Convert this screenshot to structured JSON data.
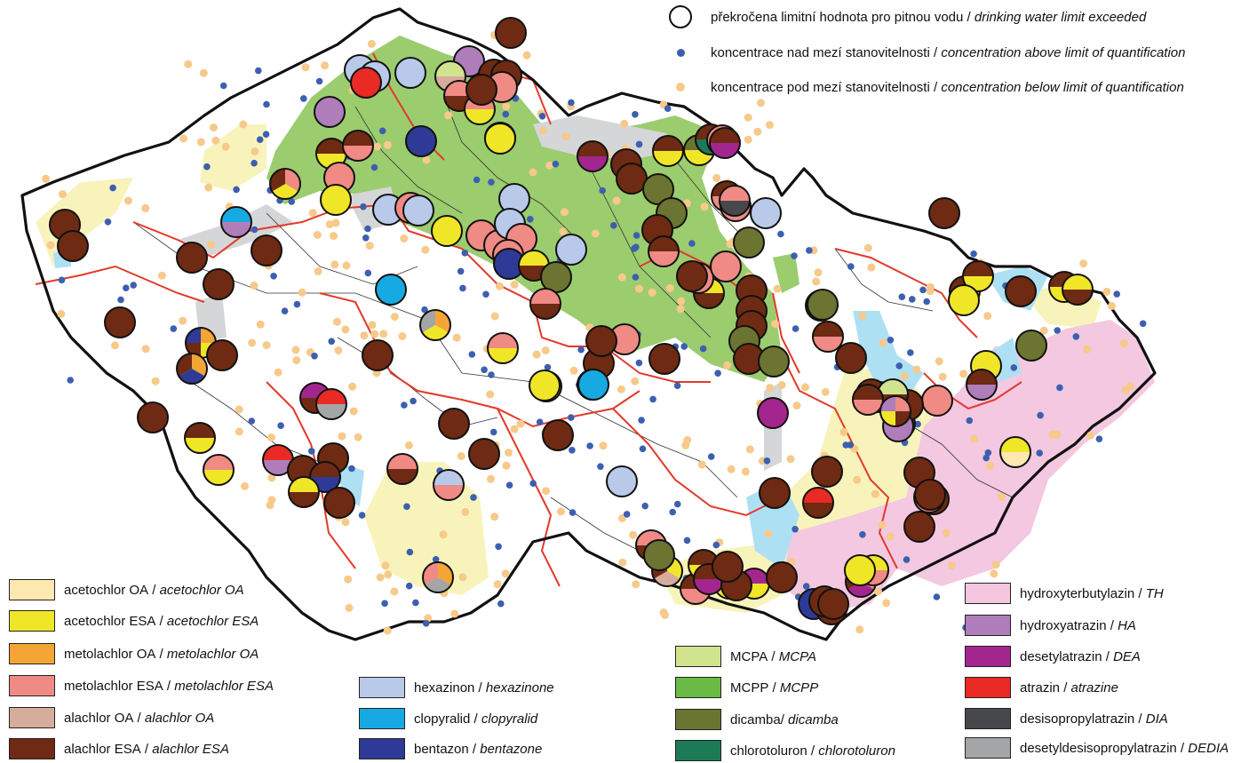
{
  "colors": {
    "background": "#ffffff",
    "border_country": "#111111",
    "border_region": "#e23a2a",
    "catchment_line": "#222222",
    "dot_above": "#3d5fb0",
    "dot_below": "#f7c98a",
    "area_green": "#9bcc6e",
    "area_yellow": "#f8f3bb",
    "area_pink": "#f3c8e0",
    "area_blue": "#aee0f4",
    "area_gray": "#d5d6d8"
  },
  "symbol_legend": [
    {
      "symbol": "big-circle-outline",
      "text": "překročena limitní hodnota pro pitnou vodu",
      "text_en": "drinking water limit exceeded"
    },
    {
      "symbol": "blue-dot",
      "text": "koncentrace nad mezí stanovitelnosti",
      "text_en": "concentration above limit of quantification"
    },
    {
      "symbol": "orange-dot",
      "text": "koncentrace pod mezí stanovitelnosti",
      "text_en": "concentration below limit of quantification"
    }
  ],
  "legend": {
    "col1": [
      {
        "cz": "acetochlor OA",
        "en": "acetochlor OA",
        "color": "#fde9b0"
      },
      {
        "cz": "acetochlor ESA",
        "en": "acetochlor ESA",
        "color": "#f0e628"
      },
      {
        "cz": "metolachlor OA",
        "en": "metolachlor OA",
        "color": "#f5a535"
      },
      {
        "cz": "metolachlor ESA",
        "en": "metolachlor ESA",
        "color": "#f08a84"
      },
      {
        "cz": "alachlor OA",
        "en": "alachlor OA",
        "color": "#d7ac9d"
      },
      {
        "cz": "alachlor ESA",
        "en": "alachlor ESA",
        "color": "#6e2a12"
      }
    ],
    "col2": [
      {
        "cz": "hexazinon",
        "en": "hexazinone",
        "color": "#b8c9ea"
      },
      {
        "cz": "clopyralid",
        "en": "clopyralid",
        "color": "#17a9e1"
      },
      {
        "cz": "bentazon",
        "en": "bentazone",
        "color": "#2e3a95"
      }
    ],
    "col3": [
      {
        "cz": "MCPA",
        "en": "MCPA",
        "color": "#d2e38f"
      },
      {
        "cz": "MCPP",
        "en": "MCPP",
        "color": "#6abb46"
      },
      {
        "cz": "dicamba",
        "en": "dicamba",
        "color": "#6b7430",
        "sep": "/ "
      },
      {
        "cz": "chlorotoluron",
        "en": "chlorotoluron",
        "color": "#1c7a57"
      }
    ],
    "col4": [
      {
        "cz": "hydroxyterbutylazin",
        "en": "TH",
        "color": "#f5c6df"
      },
      {
        "cz": "hydroxyatrazin",
        "en": "HA",
        "color": "#b07dbb"
      },
      {
        "cz": "desetylatrazin",
        "en": "DEA",
        "color": "#a3268e"
      },
      {
        "cz": "atrazin",
        "en": "atrazine",
        "color": "#ea2a25"
      },
      {
        "cz": "desisopropylatrazin",
        "en": "DIA",
        "color": "#46484b"
      },
      {
        "cz": "desetyldesisopropylatrazin",
        "en": "DEDIA",
        "color": "#a4a5a7"
      }
    ]
  },
  "samples": [
    {
      "pie": [
        "#6e2a12"
      ]
    },
    {
      "pie": [
        "#b8c9ea"
      ]
    },
    {
      "pie": [
        "#b8c9ea"
      ]
    },
    {
      "pie": [
        "#b07dbb"
      ]
    },
    {
      "pie": [
        "#6e2a12"
      ]
    },
    {
      "pie": [
        "#d2e38f",
        "#d7ac9d"
      ]
    },
    {
      "pie": [
        "#b8c9ea"
      ]
    },
    {
      "pie": [
        "#ea2a25"
      ]
    },
    {
      "pie": [
        "#b07dbb"
      ]
    },
    {
      "pie": [
        "#f08a84",
        "#6e2a12"
      ]
    },
    {
      "pie": [
        "#f08a84",
        "#f0e628"
      ]
    },
    {
      "pie": [
        "#6e2a12"
      ]
    },
    {
      "pie": [
        "#2e3a95"
      ]
    },
    {
      "pie": [
        "#f0e628"
      ]
    },
    {
      "pie": [
        "#6e2a12",
        "#f0e628"
      ]
    },
    {
      "pie": [
        "#6e2a12",
        "#f08a84"
      ]
    },
    {
      "pie": [
        "#f08a84",
        "#f0e628",
        "#6e2a12"
      ]
    },
    {
      "pie": [
        "#f08a84"
      ]
    },
    {
      "pie": [
        "#f0e628"
      ]
    },
    {
      "pie": [
        "#b8c9ea"
      ]
    },
    {
      "pie": [
        "#f08a84"
      ]
    },
    {
      "pie": [
        "#b8c9ea"
      ]
    },
    {
      "pie": [
        "#17a9e1",
        "#b07dbb"
      ]
    },
    {
      "pie": [
        "#6e2a12"
      ]
    },
    {
      "pie": [
        "#6e2a12"
      ]
    },
    {
      "pie": [
        "#6e2a12"
      ]
    },
    {
      "pie": [
        "#6e2a12"
      ]
    },
    {
      "pie": [
        "#6e2a12"
      ]
    },
    {
      "pie": [
        "#17a9e1"
      ]
    },
    {
      "pie": [
        "#f5a535",
        "#f0e628",
        "#6e2a12",
        "#2e3a95"
      ]
    },
    {
      "pie": [
        "#f5a535",
        "#2e3a95",
        "#6e2a12"
      ]
    },
    {
      "pie": [
        "#6e2a12"
      ]
    },
    {
      "pie": [
        "#a3268e",
        "#6e2a12"
      ]
    },
    {
      "pie": [
        "#ea2a25",
        "#a4a5a7"
      ]
    },
    {
      "pie": [
        "#6e2a12"
      ]
    },
    {
      "pie": [
        "#6e2a12",
        "#f0e628"
      ]
    },
    {
      "pie": [
        "#6e2a12"
      ]
    },
    {
      "pie": [
        "#f08a84",
        "#f0e628"
      ]
    },
    {
      "pie": [
        "#ea2a25",
        "#b07dbb"
      ]
    },
    {
      "pie": [
        "#6e2a12"
      ]
    },
    {
      "pie": [
        "#6e2a12"
      ]
    },
    {
      "pie": [
        "#6e2a12",
        "#2e3a95"
      ]
    },
    {
      "pie": [
        "#f0e628",
        "#6e2a12"
      ]
    },
    {
      "pie": [
        "#6e2a12"
      ]
    },
    {
      "pie": [
        "#f08a84",
        "#6e2a12"
      ]
    },
    {
      "pie": [
        "#b8c9ea",
        "#f08a84"
      ]
    },
    {
      "pie": [
        "#6e2a12"
      ]
    },
    {
      "pie": [
        "#6e2a12"
      ]
    },
    {
      "pie": [
        "#6e2a12"
      ]
    },
    {
      "pie": [
        "#6e2a12"
      ]
    },
    {
      "pie": [
        "#f5a535",
        "#a4a5a7",
        "#f08a84"
      ]
    },
    {
      "pie": [
        "#f5a535",
        "#f0e628",
        "#a4a5a7"
      ]
    },
    {
      "pie": [
        "#f08a84",
        "#f0e628"
      ]
    },
    {
      "pie": [
        "#f0e628"
      ]
    },
    {
      "pie": [
        "#17a9e1"
      ]
    },
    {
      "pie": [
        "#6e2a12"
      ]
    },
    {
      "pie": [
        "#6e2a12"
      ]
    },
    {
      "pie": [
        "#f08a84"
      ]
    },
    {
      "pie": [
        "#6e2a12"
      ]
    },
    {
      "pie": [
        "#b8c9ea"
      ]
    },
    {
      "pie": [
        "#f08a84"
      ]
    },
    {
      "pie": [
        "#f0e628"
      ]
    },
    {
      "pie": [
        "#f08a84"
      ]
    },
    {
      "pie": [
        "#b8c9ea"
      ]
    },
    {
      "pie": [
        "#f08a84"
      ]
    },
    {
      "pie": [
        "#f08a84"
      ]
    },
    {
      "pie": [
        "#b8c9ea"
      ]
    },
    {
      "pie": [
        "#2e3a95"
      ]
    },
    {
      "pie": [
        "#f0e628",
        "#6e2a12"
      ]
    },
    {
      "pie": [
        "#6b7430"
      ]
    },
    {
      "pie": [
        "#f08a84",
        "#6e2a12"
      ]
    },
    {
      "pie": [
        "#6e2a12",
        "#a3268e"
      ]
    },
    {
      "pie": [
        "#6e2a12"
      ]
    },
    {
      "pie": [
        "#6e2a12"
      ]
    },
    {
      "pie": [
        "#6e2a12",
        "#f0e628"
      ]
    },
    {
      "pie": [
        "#6b7430",
        "#f0e628"
      ]
    },
    {
      "pie": [
        "#6e2a12",
        "#1c7a57"
      ]
    },
    {
      "pie": [
        "#f08a84"
      ]
    },
    {
      "pie": [
        "#6e2a12",
        "#f08a84"
      ]
    },
    {
      "pie": [
        "#f5a535",
        "#f08a84"
      ]
    },
    {
      "pie": [
        "#6b7430"
      ]
    },
    {
      "pie": [
        "#6b7430"
      ]
    },
    {
      "pie": [
        "#6e2a12"
      ]
    },
    {
      "pie": [
        "#6e2a12",
        "#f08a84"
      ]
    },
    {
      "pie": [
        "#6b7430"
      ]
    },
    {
      "pie": [
        "#f0e628",
        "#6e2a12"
      ]
    },
    {
      "pie": [
        "#f08a84"
      ]
    },
    {
      "pie": [
        "#f08a84"
      ]
    },
    {
      "pie": [
        "#b8c9ea"
      ]
    },
    {
      "pie": [
        "#6e2a12"
      ]
    },
    {
      "pie": [
        "#6e2a12"
      ]
    },
    {
      "pie": [
        "#6e2a12"
      ]
    },
    {
      "pie": [
        "#6b7430"
      ]
    },
    {
      "pie": [
        "#f08a84"
      ]
    },
    {
      "pie": [
        "#6e2a12"
      ]
    },
    {
      "pie": [
        "#6b7430"
      ]
    },
    {
      "pie": [
        "#f0e628"
      ]
    },
    {
      "pie": [
        "#17a9e1"
      ]
    },
    {
      "pie": [
        "#6e2a12"
      ]
    },
    {
      "pie": [
        "#6e2a12"
      ]
    },
    {
      "pie": [
        "#6e2a12"
      ]
    },
    {
      "pie": [
        "#b8c9ea"
      ]
    },
    {
      "pie": [
        "#f08a84",
        "#46484b"
      ]
    },
    {
      "pie": [
        "#6e2a12",
        "#a3268e"
      ]
    },
    {
      "pie": [
        "#6e2a12"
      ]
    },
    {
      "pie": [
        "#6e2a12",
        "#f08a84"
      ]
    },
    {
      "pie": [
        "#6e2a12"
      ]
    },
    {
      "pie": [
        "#6b7430"
      ]
    },
    {
      "pie": [
        "#a3268e"
      ]
    },
    {
      "pie": [
        "#ea2a25",
        "#6e2a12"
      ]
    },
    {
      "pie": [
        "#6e2a12"
      ]
    },
    {
      "pie": [
        "#6e2a12"
      ]
    },
    {
      "pie": [
        "#6e2a12"
      ]
    },
    {
      "pie": [
        "#6e2a12"
      ]
    },
    {
      "pie": [
        "#6e2a12"
      ]
    },
    {
      "pie": [
        "#6e2a12"
      ]
    },
    {
      "pie": [
        "#f08a84"
      ]
    },
    {
      "pie": [
        "#6e2a12"
      ]
    },
    {
      "pie": [
        "#6e2a12",
        "#f0e628"
      ]
    },
    {
      "pie": [
        "#6e2a12",
        "#f0e628"
      ]
    },
    {
      "pie": [
        "#6e2a12",
        "#f0e628"
      ]
    },
    {
      "pie": [
        "#f0e628"
      ]
    },
    {
      "pie": [
        "#6e2a12",
        "#b07dbb"
      ]
    },
    {
      "pie": [
        "#f0e628"
      ]
    },
    {
      "pie": [
        "#6b7430"
      ]
    },
    {
      "pie": [
        "#f0e628",
        "#fde9b0"
      ]
    },
    {
      "pie": [
        "#6e2a12"
      ]
    },
    {
      "pie": [
        "#6e2a12"
      ]
    },
    {
      "pie": [
        "#6e2a12"
      ]
    },
    {
      "pie": [
        "#6e2a12",
        "#6abb46"
      ]
    },
    {
      "pie": [
        "#f08a84"
      ]
    },
    {
      "pie": [
        "#d2e38f",
        "#6e2a12"
      ]
    },
    {
      "pie": [
        "#b07dbb"
      ]
    },
    {
      "pie": [
        "#6e2a12"
      ]
    },
    {
      "pie": [
        "#f0e628",
        "#6e2a12"
      ]
    },
    {
      "pie": [
        "#6e2a12"
      ]
    },
    {
      "pie": [
        "#6e2a12",
        "#f08a84"
      ]
    },
    {
      "pie": [
        "#f08a84",
        "#6e2a12",
        "#f0e628",
        "#b07dbb"
      ]
    },
    {
      "pie": [
        "#f08a84",
        "#a3268e",
        "#6e2a12"
      ]
    },
    {
      "pie": [
        "#f0e628",
        "#f08a84"
      ]
    },
    {
      "pie": [
        "#f08a84",
        "#6e2a12"
      ]
    },
    {
      "pie": [
        "#f0e628",
        "#d7ac9d",
        "#6e2a12"
      ]
    },
    {
      "pie": [
        "#6e2a12",
        "#f08a84"
      ]
    },
    {
      "pie": [
        "#6b7430"
      ]
    },
    {
      "pie": [
        "#6e2a12",
        "#f0e628"
      ]
    },
    {
      "pie": [
        "#b07dbb",
        "#f0e628"
      ]
    },
    {
      "pie": [
        "#6e2a12",
        "#a3268e"
      ]
    },
    {
      "pie": [
        "#a3268e",
        "#f0e628"
      ]
    },
    {
      "pie": [
        "#6e2a12"
      ]
    },
    {
      "pie": [
        "#2e3a95"
      ]
    },
    {
      "pie": [
        "#f0e628"
      ]
    },
    {
      "pie": [
        "#6e2a12"
      ]
    },
    {
      "pie": [
        "#6e2a12"
      ]
    },
    {
      "pie": [
        "#6e2a12"
      ]
    },
    {
      "pie": [
        "#6e2a12"
      ]
    },
    {
      "pie": [
        "#6e2a12"
      ]
    }
  ]
}
